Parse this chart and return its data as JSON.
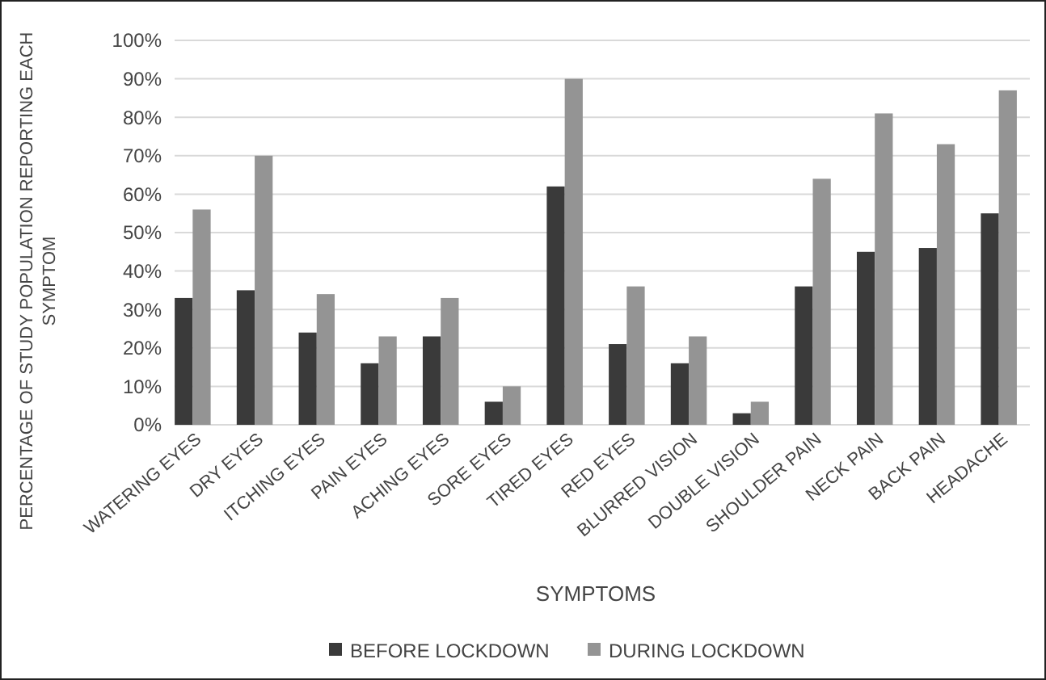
{
  "chart_data": {
    "type": "bar",
    "xlabel": "SYMPTOMS",
    "ylabel": "PERCENTAGE OF STUDY POPULATION REPORTING EACH SYMPTOM",
    "categories": [
      "WATERING EYES",
      "DRY EYES",
      "ITCHING EYES",
      "PAIN EYES",
      "ACHING EYES",
      "SORE EYES",
      "TIRED EYES",
      "RED EYES",
      "BLURRED VISION",
      "DOUBLE VISION",
      "SHOULDER PAIN",
      "NECK PAIN",
      "BACK PAIN",
      "HEADACHE"
    ],
    "series": [
      {
        "name": "BEFORE LOCKDOWN",
        "color": "#3a3a3a",
        "values": [
          33,
          35,
          24,
          16,
          23,
          6,
          62,
          21,
          16,
          3,
          36,
          45,
          46,
          55
        ]
      },
      {
        "name": "DURING LOCKDOWN",
        "color": "#949494",
        "values": [
          56,
          70,
          34,
          23,
          33,
          10,
          90,
          36,
          23,
          6,
          64,
          81,
          73,
          87
        ]
      }
    ],
    "ylim": [
      0,
      100
    ],
    "yticks": [
      {
        "value": 0,
        "label": "0%"
      },
      {
        "value": 10,
        "label": "10%"
      },
      {
        "value": 20,
        "label": "20%"
      },
      {
        "value": 30,
        "label": "30%"
      },
      {
        "value": 40,
        "label": "40%"
      },
      {
        "value": 50,
        "label": "50%"
      },
      {
        "value": 60,
        "label": "60%"
      },
      {
        "value": 70,
        "label": "70%"
      },
      {
        "value": 80,
        "label": "80%"
      },
      {
        "value": 90,
        "label": "90%"
      },
      {
        "value": 100,
        "label": "100%"
      }
    ],
    "grid": "y",
    "legend": "bottom"
  }
}
